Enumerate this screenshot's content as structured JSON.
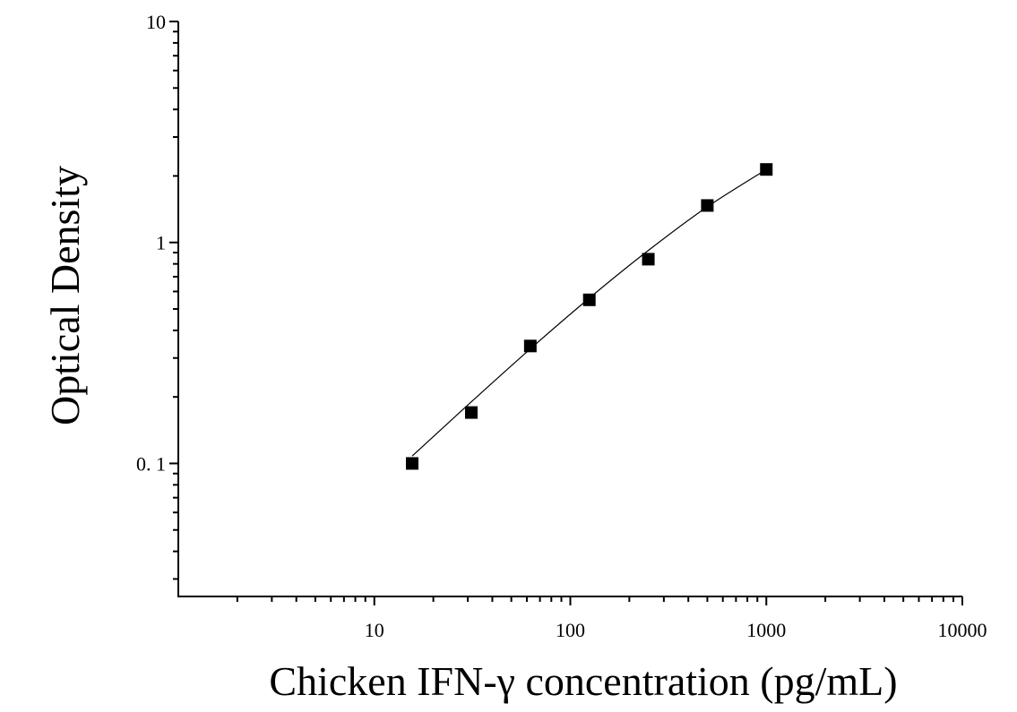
{
  "chart_data": {
    "type": "scatter",
    "title": "",
    "xlabel": "Chicken IFN-γ concentration (pg/mL)",
    "ylabel": "Optical Density",
    "xscale": "log",
    "yscale": "log",
    "xlim": [
      1,
      10000
    ],
    "ylim": [
      0.025,
      10
    ],
    "x_ticks": [
      {
        "value": 10,
        "label": "10"
      },
      {
        "value": 100,
        "label": "100"
      },
      {
        "value": 1000,
        "label": "1000"
      },
      {
        "value": 10000,
        "label": "10000"
      }
    ],
    "y_ticks": [
      {
        "value": 0.1,
        "label": "0. 1"
      },
      {
        "value": 1,
        "label": "1"
      },
      {
        "value": 10,
        "label": "10"
      }
    ],
    "grid": false,
    "legend": "none",
    "series": [
      {
        "marker": "square",
        "color": "#000000",
        "x": [
          15.6,
          31.25,
          62.5,
          125,
          250,
          500,
          1000
        ],
        "y": [
          0.1,
          0.17,
          0.34,
          0.55,
          0.84,
          1.47,
          2.14
        ]
      }
    ],
    "fit_curve": {
      "color": "#000000",
      "x": [
        15.6,
        31.25,
        62.5,
        125,
        250,
        500,
        1000
      ],
      "y": [
        0.108,
        0.19,
        0.33,
        0.56,
        0.92,
        1.45,
        2.14
      ]
    }
  }
}
